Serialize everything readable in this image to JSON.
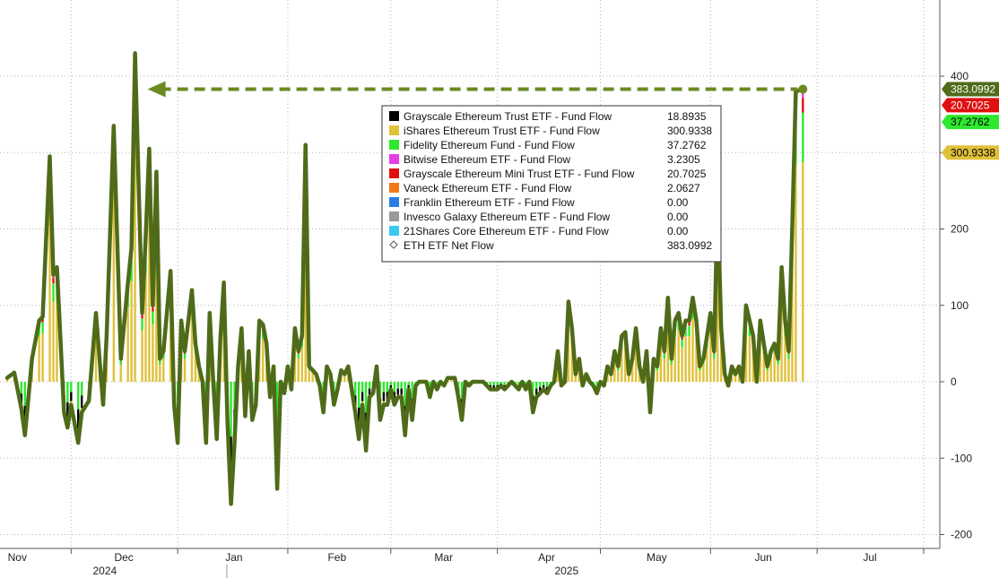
{
  "chart_data": {
    "type": "bar",
    "stacked": true,
    "ylim": [
      -215,
      500
    ],
    "y_ticks": [
      -200,
      -100,
      0,
      100,
      200,
      300,
      400
    ],
    "grid": true,
    "legend_position": "top-right",
    "month_ticks": [
      {
        "label": "Nov",
        "x": 18
      },
      {
        "label": "Dec",
        "x": 48
      },
      {
        "label": "Jan",
        "x": 79
      },
      {
        "label": "Feb",
        "x": 108
      },
      {
        "label": "Mar",
        "x": 138
      },
      {
        "label": "Apr",
        "x": 167
      },
      {
        "label": "May",
        "x": 198
      },
      {
        "label": "Jun",
        "x": 228
      },
      {
        "label": "Jul",
        "x": 258
      }
    ],
    "year_labels": [
      {
        "label": "2024",
        "x": 30
      },
      {
        "label": "2025",
        "x": 160
      }
    ],
    "series": [
      {
        "name": "Grayscale Ethereum Trust ETF - Fund Flow",
        "value": "18.8935",
        "color": "#000000"
      },
      {
        "name": "iShares Ethereum Trust ETF - Fund Flow",
        "value": "300.9338",
        "color": "#e0c13a"
      },
      {
        "name": "Fidelity Ethereum Fund - Fund Flow",
        "value": "37.2762",
        "color": "#2ee82e"
      },
      {
        "name": "Bitwise Ethereum ETF - Fund Flow",
        "value": "3.2305",
        "color": "#e83ee8"
      },
      {
        "name": "Grayscale Ethereum Mini Trust ETF - Fund Flow",
        "value": "20.7025",
        "color": "#e01010"
      },
      {
        "name": "Vaneck Ethereum ETF - Fund Flow",
        "value": "2.0627",
        "color": "#f07a1a"
      },
      {
        "name": "Franklin Ethereum ETF - Fund Flow",
        "value": "0.00",
        "color": "#2a7de8"
      },
      {
        "name": "Invesco Galaxy Ethereum ETF - Fund Flow",
        "value": "0.00",
        "color": "#999999"
      },
      {
        "name": "21Shares Core Ethereum ETF - Fund Flow",
        "value": "0.00",
        "color": "#3ac8f0"
      }
    ],
    "net_flow": {
      "name": "ETH ETF Net Flow",
      "value": "383.0992",
      "color": "#4f6b1a",
      "points": [
        [
          0,
          5
        ],
        [
          2,
          12
        ],
        [
          4,
          -35
        ],
        [
          5,
          -70
        ],
        [
          7,
          30
        ],
        [
          9,
          80
        ],
        [
          10,
          85
        ],
        [
          12,
          295
        ],
        [
          13,
          140
        ],
        [
          14,
          150
        ],
        [
          16,
          -40
        ],
        [
          17,
          -60
        ],
        [
          18,
          -30
        ],
        [
          20,
          -80
        ],
        [
          21,
          -40
        ],
        [
          23,
          -25
        ],
        [
          25,
          90
        ],
        [
          26,
          30
        ],
        [
          27,
          -30
        ],
        [
          28,
          60
        ],
        [
          30,
          335
        ],
        [
          32,
          30
        ],
        [
          34,
          130
        ],
        [
          35,
          175
        ],
        [
          36,
          430
        ],
        [
          38,
          90
        ],
        [
          39,
          190
        ],
        [
          40,
          305
        ],
        [
          41,
          100
        ],
        [
          42,
          275
        ],
        [
          43,
          30
        ],
        [
          44,
          40
        ],
        [
          46,
          145
        ],
        [
          47,
          -30
        ],
        [
          48,
          -80
        ],
        [
          49,
          80
        ],
        [
          50,
          40
        ],
        [
          52,
          120
        ],
        [
          53,
          50
        ],
        [
          54,
          20
        ],
        [
          55,
          0
        ],
        [
          56,
          -80
        ],
        [
          57,
          90
        ],
        [
          58,
          0
        ],
        [
          59,
          -75
        ],
        [
          60,
          55
        ],
        [
          61,
          130
        ],
        [
          62,
          -50
        ],
        [
          63,
          -160
        ],
        [
          64,
          -80
        ],
        [
          65,
          20
        ],
        [
          66,
          70
        ],
        [
          67,
          -45
        ],
        [
          68,
          40
        ],
        [
          69,
          -50
        ],
        [
          70,
          -30
        ],
        [
          71,
          80
        ],
        [
          72,
          75
        ],
        [
          73,
          50
        ],
        [
          74,
          -20
        ],
        [
          75,
          20
        ],
        [
          76,
          -140
        ],
        [
          77,
          0
        ],
        [
          78,
          -15
        ],
        [
          79,
          20
        ],
        [
          80,
          -10
        ],
        [
          81,
          70
        ],
        [
          82,
          40
        ],
        [
          83,
          60
        ],
        [
          84,
          310
        ],
        [
          85,
          20
        ],
        [
          86,
          15
        ],
        [
          87,
          10
        ],
        [
          88,
          -5
        ],
        [
          89,
          -40
        ],
        [
          90,
          20
        ],
        [
          91,
          10
        ],
        [
          92,
          -30
        ],
        [
          93,
          -10
        ],
        [
          94,
          15
        ],
        [
          95,
          10
        ],
        [
          96,
          20
        ],
        [
          97,
          -10
        ],
        [
          98,
          -40
        ],
        [
          99,
          -75
        ],
        [
          100,
          -30
        ],
        [
          101,
          -90
        ],
        [
          102,
          -20
        ],
        [
          103,
          -15
        ],
        [
          104,
          20
        ],
        [
          105,
          -50
        ],
        [
          106,
          -30
        ],
        [
          107,
          -30
        ],
        [
          108,
          -10
        ],
        [
          109,
          -30
        ],
        [
          110,
          -20
        ],
        [
          111,
          -20
        ],
        [
          112,
          -70
        ],
        [
          113,
          -10
        ],
        [
          114,
          -50
        ],
        [
          115,
          -5
        ],
        [
          116,
          0
        ],
        [
          117,
          0
        ],
        [
          118,
          0
        ],
        [
          119,
          -20
        ],
        [
          120,
          0
        ],
        [
          121,
          -10
        ],
        [
          122,
          0
        ],
        [
          123,
          -5
        ],
        [
          124,
          5
        ],
        [
          125,
          5
        ],
        [
          126,
          5
        ],
        [
          127,
          -20
        ],
        [
          128,
          -50
        ],
        [
          129,
          0
        ],
        [
          130,
          -5
        ],
        [
          131,
          0
        ],
        [
          132,
          0
        ],
        [
          133,
          0
        ],
        [
          134,
          0
        ],
        [
          135,
          -5
        ],
        [
          136,
          -10
        ],
        [
          137,
          -10
        ],
        [
          138,
          -10
        ],
        [
          139,
          -5
        ],
        [
          140,
          -10
        ],
        [
          141,
          -5
        ],
        [
          142,
          0
        ],
        [
          143,
          -5
        ],
        [
          144,
          -10
        ],
        [
          145,
          0
        ],
        [
          146,
          -10
        ],
        [
          147,
          0
        ],
        [
          148,
          -40
        ],
        [
          149,
          -20
        ],
        [
          150,
          -15
        ],
        [
          151,
          -10
        ],
        [
          152,
          -15
        ],
        [
          153,
          -5
        ],
        [
          154,
          0
        ],
        [
          155,
          40
        ],
        [
          156,
          -5
        ],
        [
          157,
          0
        ],
        [
          158,
          105
        ],
        [
          159,
          70
        ],
        [
          160,
          10
        ],
        [
          161,
          30
        ],
        [
          162,
          -5
        ],
        [
          163,
          10
        ],
        [
          164,
          0
        ],
        [
          165,
          -5
        ],
        [
          166,
          -15
        ],
        [
          167,
          0
        ],
        [
          168,
          -5
        ],
        [
          169,
          20
        ],
        [
          170,
          10
        ],
        [
          171,
          40
        ],
        [
          172,
          20
        ],
        [
          173,
          60
        ],
        [
          174,
          65
        ],
        [
          175,
          10
        ],
        [
          176,
          30
        ],
        [
          177,
          70
        ],
        [
          178,
          20
        ],
        [
          179,
          0
        ],
        [
          180,
          40
        ],
        [
          181,
          -40
        ],
        [
          182,
          30
        ],
        [
          183,
          20
        ],
        [
          184,
          70
        ],
        [
          185,
          40
        ],
        [
          186,
          110
        ],
        [
          187,
          30
        ],
        [
          188,
          80
        ],
        [
          189,
          90
        ],
        [
          190,
          60
        ],
        [
          191,
          80
        ],
        [
          192,
          80
        ],
        [
          193,
          110
        ],
        [
          194,
          80
        ],
        [
          195,
          20
        ],
        [
          196,
          30
        ],
        [
          197,
          60
        ],
        [
          198,
          90
        ],
        [
          199,
          40
        ],
        [
          200,
          240
        ],
        [
          201,
          70
        ],
        [
          202,
          10
        ],
        [
          203,
          -5
        ],
        [
          204,
          20
        ],
        [
          205,
          10
        ],
        [
          206,
          20
        ],
        [
          207,
          0
        ],
        [
          208,
          100
        ],
        [
          209,
          80
        ],
        [
          210,
          60
        ],
        [
          211,
          0
        ],
        [
          212,
          80
        ],
        [
          213,
          50
        ],
        [
          214,
          20
        ],
        [
          215,
          40
        ],
        [
          216,
          50
        ],
        [
          217,
          30
        ],
        [
          218,
          150
        ],
        [
          219,
          80
        ],
        [
          220,
          40
        ],
        [
          221,
          200
        ],
        [
          222,
          380
        ],
        [
          224,
          383
        ]
      ]
    },
    "arrow": {
      "from_x": 36,
      "to_x": 224,
      "y": 383
    },
    "value_tags": [
      {
        "value": "383.0992",
        "bg": "#4f6b1a",
        "fg": "#ffffff",
        "y": 383
      },
      {
        "value": "20.7025",
        "bg": "#e01010",
        "fg": "#ffffff",
        "y": 362
      },
      {
        "value": "37.2762",
        "bg": "#2ee82e",
        "fg": "#000000",
        "y": 340
      },
      {
        "value": "300.9338",
        "bg": "#e0c13a",
        "fg": "#000000",
        "y": 300
      }
    ]
  }
}
